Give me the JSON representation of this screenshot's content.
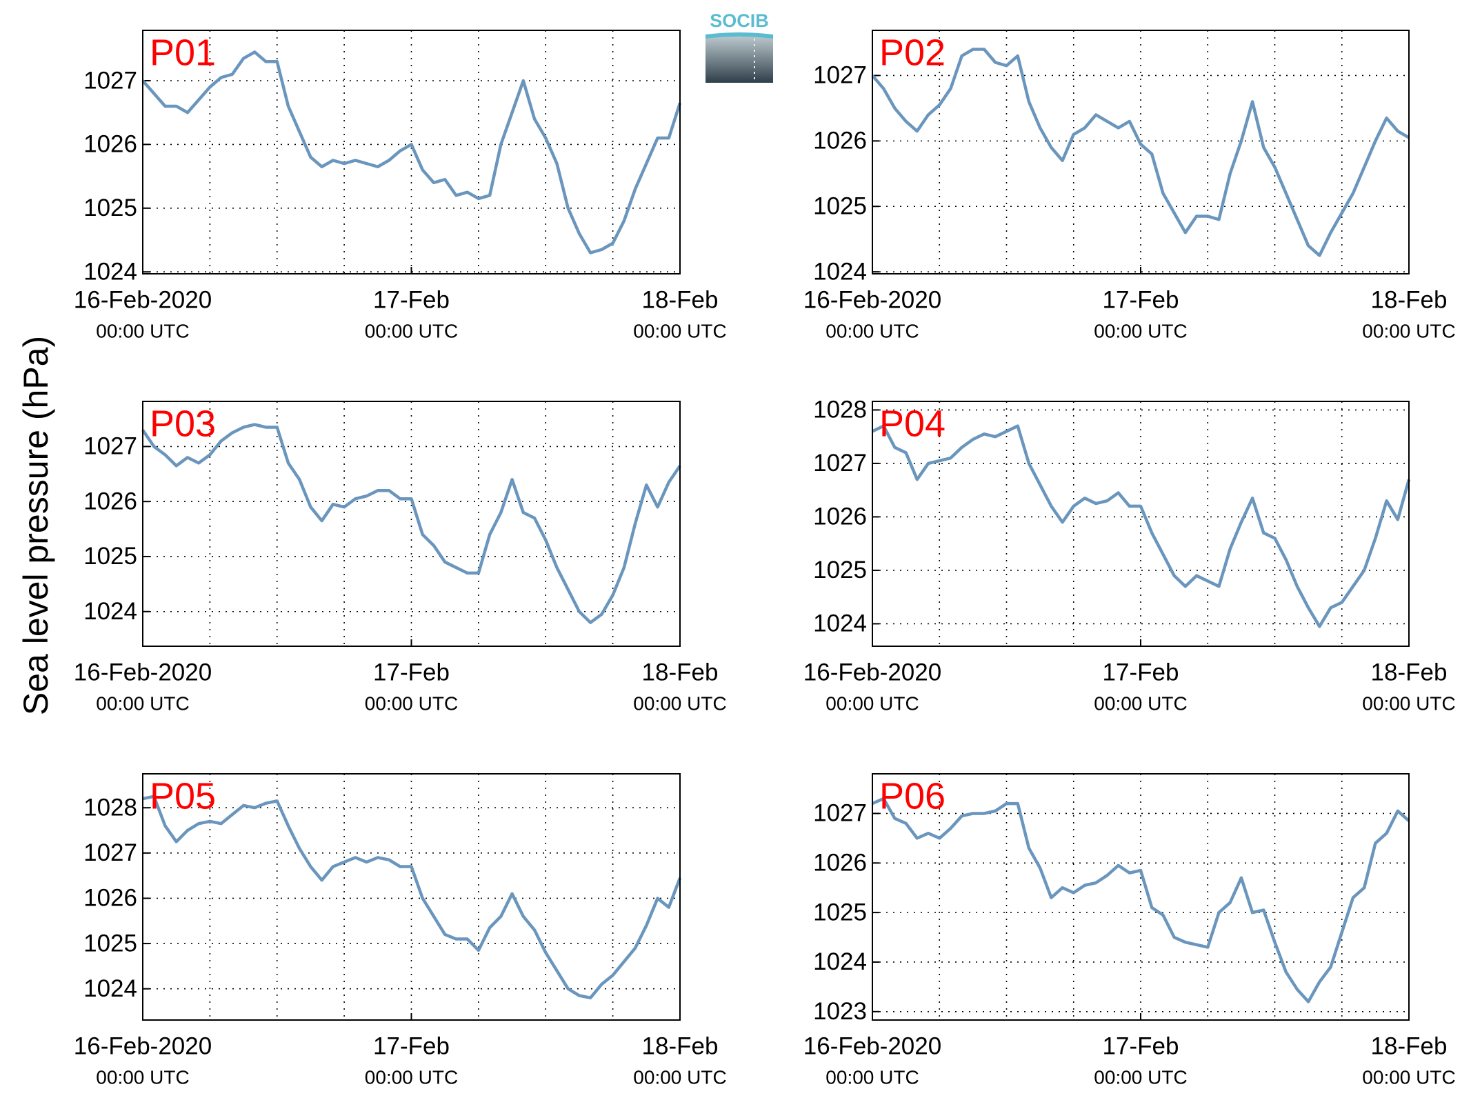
{
  "y_label": "Sea level pressure (hPa)",
  "logo": "SOCIB",
  "chart_data": [
    {
      "type": "line",
      "title": "P01",
      "x": [
        0,
        1,
        2,
        3,
        4,
        5,
        6,
        7,
        8,
        9,
        10,
        11,
        12,
        13,
        14,
        15,
        16,
        17,
        18,
        19,
        20,
        21,
        22,
        23,
        24,
        25,
        26,
        27,
        28,
        29,
        30,
        31,
        32,
        33,
        34,
        35,
        36,
        37,
        38,
        39,
        40,
        41,
        42,
        43,
        44,
        45,
        46,
        47,
        48
      ],
      "series": [
        {
          "color": "#6a96bd",
          "values": [
            1027.0,
            1026.8,
            1026.6,
            1026.6,
            1026.5,
            1026.7,
            1026.9,
            1027.05,
            1027.1,
            1027.35,
            1027.45,
            1027.3,
            1027.3,
            1026.6,
            1026.2,
            1025.8,
            1025.65,
            1025.75,
            1025.7,
            1025.75,
            1025.7,
            1025.65,
            1025.75,
            1025.9,
            1026.0,
            1025.6,
            1025.4,
            1025.45,
            1025.2,
            1025.25,
            1025.15,
            1025.2,
            1026.0,
            1026.5,
            1027.0,
            1026.4,
            1026.1,
            1025.7,
            1025.0,
            1024.6,
            1024.3,
            1024.35,
            1024.45,
            1024.8,
            1025.3,
            1025.7,
            1026.1,
            1026.1,
            1026.65
          ]
        }
      ],
      "xlim": [
        0,
        48
      ],
      "ylim": [
        1023.97,
        1027.79
      ],
      "xticks": [
        {
          "value": 0,
          "label": "16-Feb-2020",
          "time": "00:00 UTC"
        },
        {
          "value": 24,
          "label": "17-Feb",
          "time": "00:00 UTC"
        },
        {
          "value": 48,
          "label": "18-Feb",
          "time": "00:00 UTC"
        }
      ],
      "xgrid": [
        6,
        12,
        18,
        30,
        36,
        42
      ],
      "yticks": [
        1024,
        1025,
        1026,
        1027
      ],
      "grid": true
    },
    {
      "type": "line",
      "title": "P02",
      "x": [
        0,
        1,
        2,
        3,
        4,
        5,
        6,
        7,
        8,
        9,
        10,
        11,
        12,
        13,
        14,
        15,
        16,
        17,
        18,
        19,
        20,
        21,
        22,
        23,
        24,
        25,
        26,
        27,
        28,
        29,
        30,
        31,
        32,
        33,
        34,
        35,
        36,
        37,
        38,
        39,
        40,
        41,
        42,
        43,
        44,
        45,
        46,
        47,
        48
      ],
      "series": [
        {
          "color": "#6a96bd",
          "values": [
            1027.0,
            1026.8,
            1026.5,
            1026.3,
            1026.15,
            1026.4,
            1026.55,
            1026.8,
            1027.3,
            1027.4,
            1027.4,
            1027.2,
            1027.15,
            1027.3,
            1026.6,
            1026.2,
            1025.9,
            1025.7,
            1026.1,
            1026.2,
            1026.4,
            1026.3,
            1026.2,
            1026.3,
            1025.95,
            1025.8,
            1025.2,
            1024.9,
            1024.6,
            1024.85,
            1024.85,
            1024.8,
            1025.5,
            1026.0,
            1026.6,
            1025.9,
            1025.6,
            1025.2,
            1024.8,
            1024.4,
            1024.25,
            1024.6,
            1024.9,
            1025.2,
            1025.6,
            1026.0,
            1026.35,
            1026.15,
            1026.05
          ]
        }
      ],
      "xlim": [
        0,
        48
      ],
      "ylim": [
        1023.97,
        1027.69
      ],
      "xticks": [
        {
          "value": 0,
          "label": "16-Feb-2020",
          "time": "00:00 UTC"
        },
        {
          "value": 24,
          "label": "17-Feb",
          "time": "00:00 UTC"
        },
        {
          "value": 48,
          "label": "18-Feb",
          "time": "00:00 UTC"
        }
      ],
      "xgrid": [
        6,
        12,
        18,
        30,
        36,
        42
      ],
      "yticks": [
        1024,
        1025,
        1026,
        1027
      ],
      "grid": true
    },
    {
      "type": "line",
      "title": "P03",
      "x": [
        0,
        1,
        2,
        3,
        4,
        5,
        6,
        7,
        8,
        9,
        10,
        11,
        12,
        13,
        14,
        15,
        16,
        17,
        18,
        19,
        20,
        21,
        22,
        23,
        24,
        25,
        26,
        27,
        28,
        29,
        30,
        31,
        32,
        33,
        34,
        35,
        36,
        37,
        38,
        39,
        40,
        41,
        42,
        43,
        44,
        45,
        46,
        47,
        48
      ],
      "series": [
        {
          "color": "#6a96bd",
          "values": [
            1027.3,
            1027.0,
            1026.85,
            1026.65,
            1026.8,
            1026.7,
            1026.85,
            1027.1,
            1027.25,
            1027.35,
            1027.4,
            1027.35,
            1027.35,
            1026.7,
            1026.4,
            1025.9,
            1025.65,
            1025.95,
            1025.9,
            1026.05,
            1026.1,
            1026.2,
            1026.2,
            1026.05,
            1026.05,
            1025.4,
            1025.2,
            1024.9,
            1024.8,
            1024.7,
            1024.7,
            1025.4,
            1025.8,
            1026.4,
            1025.8,
            1025.7,
            1025.3,
            1024.8,
            1024.4,
            1024.0,
            1023.8,
            1023.95,
            1024.3,
            1024.8,
            1025.6,
            1026.3,
            1025.9,
            1026.35,
            1026.65
          ]
        }
      ],
      "xlim": [
        0,
        48
      ],
      "ylim": [
        1023.37,
        1027.82
      ],
      "xticks": [
        {
          "value": 0,
          "label": "16-Feb-2020",
          "time": "00:00 UTC"
        },
        {
          "value": 24,
          "label": "17-Feb",
          "time": "00:00 UTC"
        },
        {
          "value": 48,
          "label": "18-Feb",
          "time": "00:00 UTC"
        }
      ],
      "xgrid": [
        6,
        12,
        18,
        30,
        36,
        42
      ],
      "yticks": [
        1024,
        1025,
        1026,
        1027
      ],
      "grid": true
    },
    {
      "type": "line",
      "title": "P04",
      "x": [
        0,
        1,
        2,
        3,
        4,
        5,
        6,
        7,
        8,
        9,
        10,
        11,
        12,
        13,
        14,
        15,
        16,
        17,
        18,
        19,
        20,
        21,
        22,
        23,
        24,
        25,
        26,
        27,
        28,
        29,
        30,
        31,
        32,
        33,
        34,
        35,
        36,
        37,
        38,
        39,
        40,
        41,
        42,
        43,
        44,
        45,
        46,
        47,
        48
      ],
      "series": [
        {
          "color": "#6a96bd",
          "values": [
            1027.6,
            1027.7,
            1027.3,
            1027.2,
            1026.7,
            1027.0,
            1027.05,
            1027.1,
            1027.3,
            1027.45,
            1027.55,
            1027.5,
            1027.6,
            1027.7,
            1027.0,
            1026.6,
            1026.2,
            1025.9,
            1026.2,
            1026.35,
            1026.25,
            1026.3,
            1026.45,
            1026.2,
            1026.2,
            1025.7,
            1025.3,
            1024.9,
            1024.7,
            1024.9,
            1024.8,
            1024.7,
            1025.4,
            1025.9,
            1026.35,
            1025.7,
            1025.6,
            1025.2,
            1024.7,
            1024.3,
            1023.95,
            1024.3,
            1024.4,
            1024.7,
            1025.0,
            1025.6,
            1026.3,
            1025.95,
            1026.7
          ]
        }
      ],
      "xlim": [
        0,
        48
      ],
      "ylim": [
        1023.58,
        1028.16
      ],
      "xticks": [
        {
          "value": 0,
          "label": "16-Feb-2020",
          "time": "00:00 UTC"
        },
        {
          "value": 24,
          "label": "17-Feb",
          "time": "00:00 UTC"
        },
        {
          "value": 48,
          "label": "18-Feb",
          "time": "00:00 UTC"
        }
      ],
      "xgrid": [
        6,
        12,
        18,
        30,
        36,
        42
      ],
      "yticks": [
        1024,
        1025,
        1026,
        1027,
        1028
      ],
      "grid": true
    },
    {
      "type": "line",
      "title": "P05",
      "x": [
        0,
        1,
        2,
        3,
        4,
        5,
        6,
        7,
        8,
        9,
        10,
        11,
        12,
        13,
        14,
        15,
        16,
        17,
        18,
        19,
        20,
        21,
        22,
        23,
        24,
        25,
        26,
        27,
        28,
        29,
        30,
        31,
        32,
        33,
        34,
        35,
        36,
        37,
        38,
        39,
        40,
        41,
        42,
        43,
        44,
        45,
        46,
        47,
        48
      ],
      "series": [
        {
          "color": "#6a96bd",
          "values": [
            1028.2,
            1028.25,
            1027.6,
            1027.25,
            1027.5,
            1027.65,
            1027.7,
            1027.65,
            1027.85,
            1028.05,
            1028.0,
            1028.1,
            1028.15,
            1027.6,
            1027.1,
            1026.7,
            1026.4,
            1026.7,
            1026.8,
            1026.9,
            1026.8,
            1026.9,
            1026.85,
            1026.7,
            1026.7,
            1026.0,
            1025.6,
            1025.2,
            1025.1,
            1025.1,
            1024.85,
            1025.35,
            1025.6,
            1026.1,
            1025.6,
            1025.3,
            1024.8,
            1024.4,
            1024.0,
            1023.85,
            1023.8,
            1024.1,
            1024.3,
            1024.6,
            1024.9,
            1025.4,
            1026.0,
            1025.8,
            1026.45
          ]
        }
      ],
      "xlim": [
        0,
        48
      ],
      "ylim": [
        1023.31,
        1028.75
      ],
      "xticks": [
        {
          "value": 0,
          "label": "16-Feb-2020",
          "time": "00:00 UTC"
        },
        {
          "value": 24,
          "label": "17-Feb",
          "time": "00:00 UTC"
        },
        {
          "value": 48,
          "label": "18-Feb",
          "time": "00:00 UTC"
        }
      ],
      "xgrid": [
        6,
        12,
        18,
        30,
        36,
        42
      ],
      "yticks": [
        1024,
        1025,
        1026,
        1027,
        1028
      ],
      "grid": true
    },
    {
      "type": "line",
      "title": "P06",
      "x": [
        0,
        1,
        2,
        3,
        4,
        5,
        6,
        7,
        8,
        9,
        10,
        11,
        12,
        13,
        14,
        15,
        16,
        17,
        18,
        19,
        20,
        21,
        22,
        23,
        24,
        25,
        26,
        27,
        28,
        29,
        30,
        31,
        32,
        33,
        34,
        35,
        36,
        37,
        38,
        39,
        40,
        41,
        42,
        43,
        44,
        45,
        46,
        47,
        48
      ],
      "series": [
        {
          "color": "#6a96bd",
          "values": [
            1027.2,
            1027.3,
            1026.9,
            1026.8,
            1026.5,
            1026.6,
            1026.5,
            1026.7,
            1026.95,
            1027.0,
            1027.0,
            1027.05,
            1027.2,
            1027.2,
            1026.3,
            1025.9,
            1025.3,
            1025.5,
            1025.4,
            1025.55,
            1025.6,
            1025.75,
            1025.95,
            1025.8,
            1025.85,
            1025.1,
            1024.95,
            1024.5,
            1024.4,
            1024.35,
            1024.3,
            1025.0,
            1025.2,
            1025.7,
            1025.0,
            1025.05,
            1024.4,
            1023.8,
            1023.45,
            1023.2,
            1023.6,
            1023.9,
            1024.6,
            1025.3,
            1025.5,
            1026.4,
            1026.6,
            1027.05,
            1026.85
          ]
        }
      ],
      "xlim": [
        0,
        48
      ],
      "ylim": [
        1022.83,
        1027.8
      ],
      "xticks": [
        {
          "value": 0,
          "label": "16-Feb-2020",
          "time": "00:00 UTC"
        },
        {
          "value": 24,
          "label": "17-Feb",
          "time": "00:00 UTC"
        },
        {
          "value": 48,
          "label": "18-Feb",
          "time": "00:00 UTC"
        }
      ],
      "xgrid": [
        6,
        12,
        18,
        30,
        36,
        42
      ],
      "yticks": [
        1023,
        1024,
        1025,
        1026,
        1027
      ],
      "grid": true
    }
  ]
}
